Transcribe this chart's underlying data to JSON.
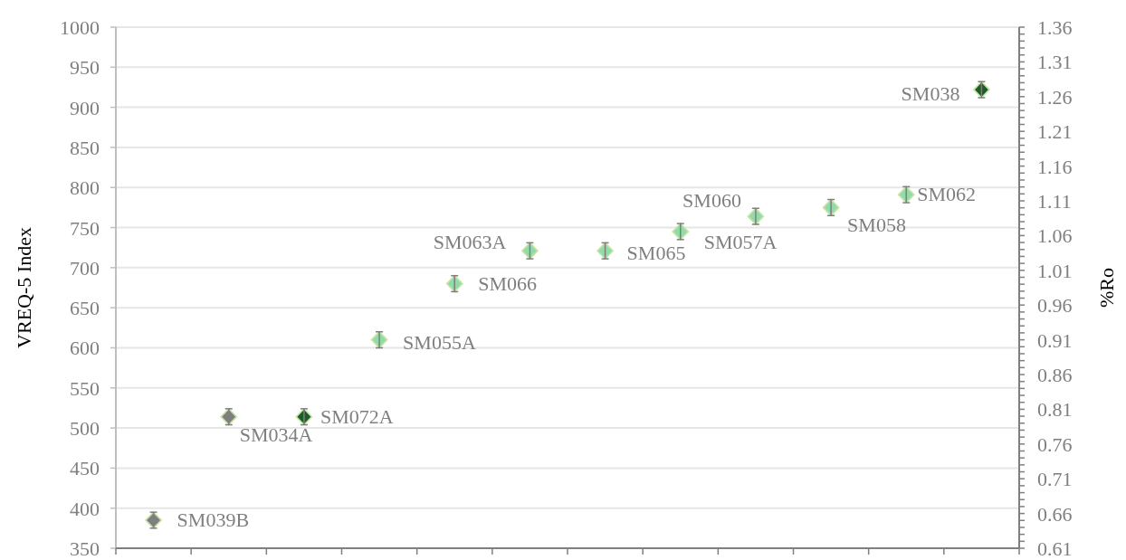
{
  "chart_data": {
    "type": "scatter",
    "ylabel": "VREQ-5 Index",
    "y2label": "%Ro",
    "categories": [
      null,
      null,
      null,
      null,
      null,
      null,
      null,
      null,
      null,
      null,
      null,
      null
    ],
    "values": [
      385,
      514,
      514,
      610,
      680,
      721,
      721,
      745,
      764,
      775,
      791,
      922
    ],
    "errors": [
      10,
      10,
      10,
      10,
      10,
      10,
      10,
      10,
      10,
      10,
      10,
      10
    ],
    "value_labels": [
      "SM039B",
      "SM034A",
      "SM072A",
      "SM055A",
      "SM066",
      "SM063A",
      "SM065",
      "SM057A",
      "SM060",
      "SM058",
      "SM062",
      "SM038"
    ],
    "colors": [
      "#7f7f7f",
      "#7f7f7f",
      "#1e5c2a",
      "#8fdca8",
      "#8fdca8",
      "#8fdca8",
      "#8fdca8",
      "#8fdca8",
      "#8fdca8",
      "#8fdca8",
      "#8fdca8",
      "#1e5c2a"
    ],
    "marker": "diamond",
    "grid": "y",
    "ylim": [
      350,
      1000
    ],
    "yticks": [
      350,
      400,
      450,
      500,
      550,
      600,
      650,
      700,
      750,
      800,
      850,
      900,
      950,
      1000
    ],
    "y2lim": [
      0.61,
      1.36
    ],
    "y2ticks": [
      0.61,
      {
        "value": 0.62,
        "label": null
      },
      {
        "value": 0.63,
        "label": null
      },
      {
        "value": 0.64,
        "label": null
      },
      {
        "value": 0.65,
        "label": null
      },
      0.66,
      {
        "value": 0.67,
        "label": null
      },
      {
        "value": 0.68,
        "label": null
      },
      {
        "value": 0.69,
        "label": null
      },
      {
        "value": 0.7,
        "label": null
      },
      0.71,
      {
        "value": 0.72,
        "label": null
      },
      {
        "value": 0.73,
        "label": null
      },
      {
        "value": 0.74,
        "label": null
      },
      {
        "value": 0.75,
        "label": null
      },
      0.76,
      {
        "value": 0.77,
        "label": null
      },
      {
        "value": 0.78,
        "label": null
      },
      {
        "value": 0.79,
        "label": null
      },
      {
        "value": 0.8,
        "label": null
      },
      0.81,
      {
        "value": 0.82,
        "label": null
      },
      {
        "value": 0.83,
        "label": null
      },
      {
        "value": 0.84,
        "label": null
      },
      {
        "value": 0.85,
        "label": null
      },
      0.86,
      {
        "value": 0.87,
        "label": null
      },
      {
        "value": 0.88,
        "label": null
      },
      {
        "value": 0.89,
        "label": null
      },
      {
        "value": 0.9,
        "label": null
      },
      0.91,
      {
        "value": 0.92,
        "label": null
      },
      {
        "value": 0.93,
        "label": null
      },
      {
        "value": 0.94,
        "label": null
      },
      {
        "value": 0.95,
        "label": null
      },
      0.96,
      {
        "value": 0.97,
        "label": null
      },
      {
        "value": 0.98,
        "label": null
      },
      {
        "value": 0.99,
        "label": null
      },
      {
        "value": 1.0,
        "label": null
      },
      1.01,
      {
        "value": 1.02,
        "label": null
      },
      {
        "value": 1.03,
        "label": null
      },
      {
        "value": 1.04,
        "label": null
      },
      {
        "value": 1.05,
        "label": null
      },
      1.06,
      {
        "value": 1.07,
        "label": null
      },
      {
        "value": 1.08,
        "label": null
      },
      {
        "value": 1.09,
        "label": null
      },
      {
        "value": 1.1,
        "label": null
      },
      1.11,
      {
        "value": 1.12,
        "label": null
      },
      {
        "value": 1.13,
        "label": null
      },
      {
        "value": 1.14,
        "label": null
      },
      {
        "value": 1.15,
        "label": null
      },
      1.16,
      {
        "value": 1.17,
        "label": null
      },
      {
        "value": 1.18,
        "label": null
      },
      {
        "value": 1.19,
        "label": null
      },
      {
        "value": 1.2,
        "label": null
      },
      1.21,
      {
        "value": 1.22,
        "label": null
      },
      {
        "value": 1.23,
        "label": null
      },
      {
        "value": 1.24,
        "label": null
      },
      {
        "value": 1.25,
        "label": null
      },
      1.26,
      {
        "value": 1.27,
        "label": null
      },
      {
        "value": 1.28,
        "label": null
      },
      {
        "value": 1.29,
        "label": null
      },
      {
        "value": 1.3,
        "label": null
      },
      1.31,
      {
        "value": 1.32,
        "label": null
      },
      {
        "value": 1.33,
        "label": null
      },
      {
        "value": 1.34,
        "label": null
      },
      {
        "value": 1.35,
        "label": null
      },
      1.36
    ]
  }
}
